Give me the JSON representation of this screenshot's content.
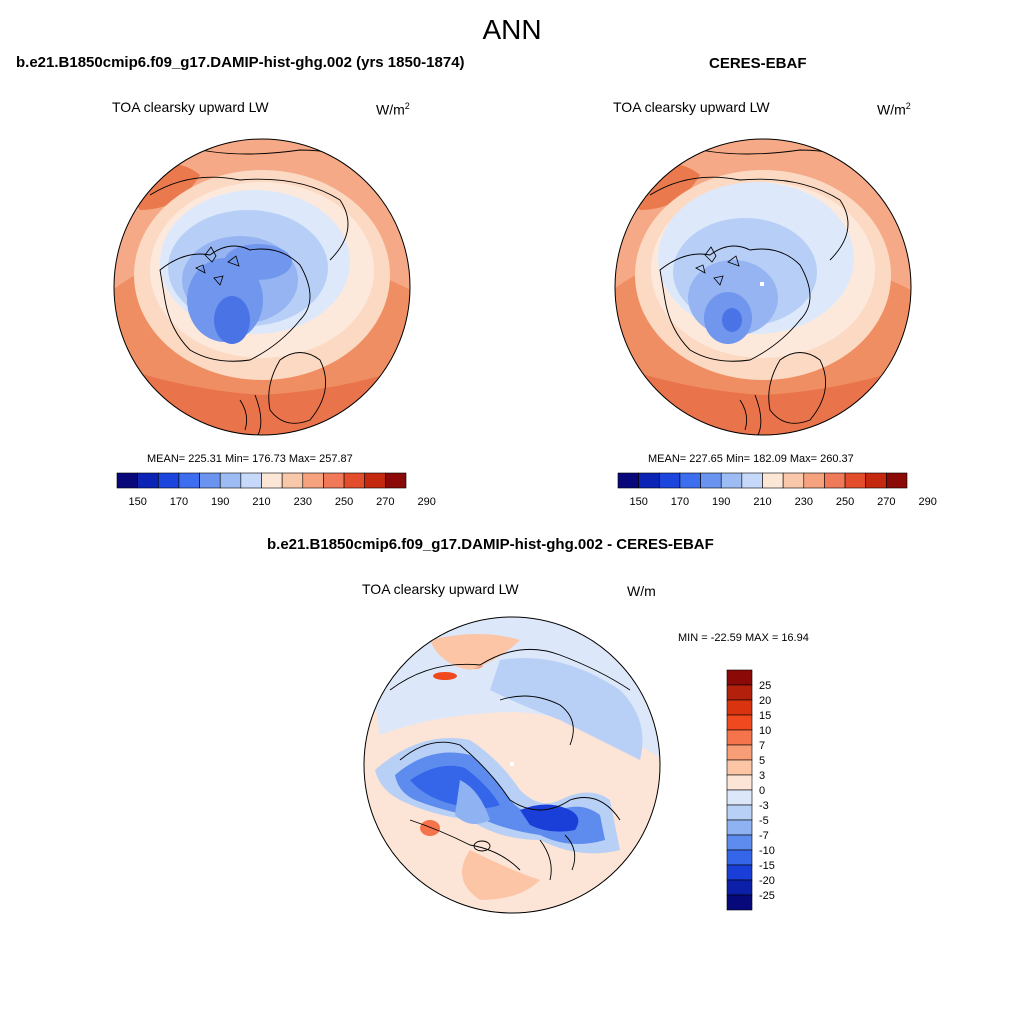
{
  "title": "ANN",
  "panels": [
    {
      "case": "b.e21.B1850cmip6.f09_g17.DAMIP-hist-ghg.002 (yrs 1850-1874)",
      "field": "TOA clearsky upward LW",
      "units_base": "W/m",
      "units_exp": "2",
      "stats": "MEAN= 225.31  Min= 176.73  Max= 257.87"
    },
    {
      "case": "CERES-EBAF",
      "field": "TOA clearsky upward LW",
      "units_base": "W/m",
      "units_exp": "2",
      "stats": "MEAN= 227.65  Min= 182.09  Max= 260.37"
    }
  ],
  "top_colorbar": {
    "labels": [
      "150",
      "170",
      "190",
      "210",
      "230",
      "250",
      "270",
      "290"
    ],
    "colors": [
      "#08087a",
      "#0b24b5",
      "#1b45dd",
      "#3d6ef0",
      "#6a94f0",
      "#9dbcf4",
      "#c7d9fa",
      "#fce6d6",
      "#f9c7aa",
      "#f6a27e",
      "#f0795a",
      "#e44d2c",
      "#c4280f",
      "#8b0a07"
    ]
  },
  "diff_panel": {
    "title": "b.e21.B1850cmip6.f09_g17.DAMIP-hist-ghg.002 - CERES-EBAF",
    "field": "TOA clearsky upward LW",
    "units": "W/m",
    "minmax": "MIN = -22.59 MAX =  16.94",
    "colorbar_labels": [
      "25",
      "20",
      "15",
      "10",
      "7",
      "5",
      "3",
      "0",
      "-3",
      "-5",
      "-7",
      "-10",
      "-15",
      "-20",
      "-25"
    ],
    "colorbar_colors": [
      "#8b0a07",
      "#b3200c",
      "#d9330f",
      "#f0491f",
      "#f5744b",
      "#f89e77",
      "#fbc5a6",
      "#fce4d6",
      "#dce8fa",
      "#b8d0f6",
      "#8fb3f2",
      "#5e8cee",
      "#3566ea",
      "#1a3fd8",
      "#0b1fa8",
      "#07087a"
    ]
  }
}
